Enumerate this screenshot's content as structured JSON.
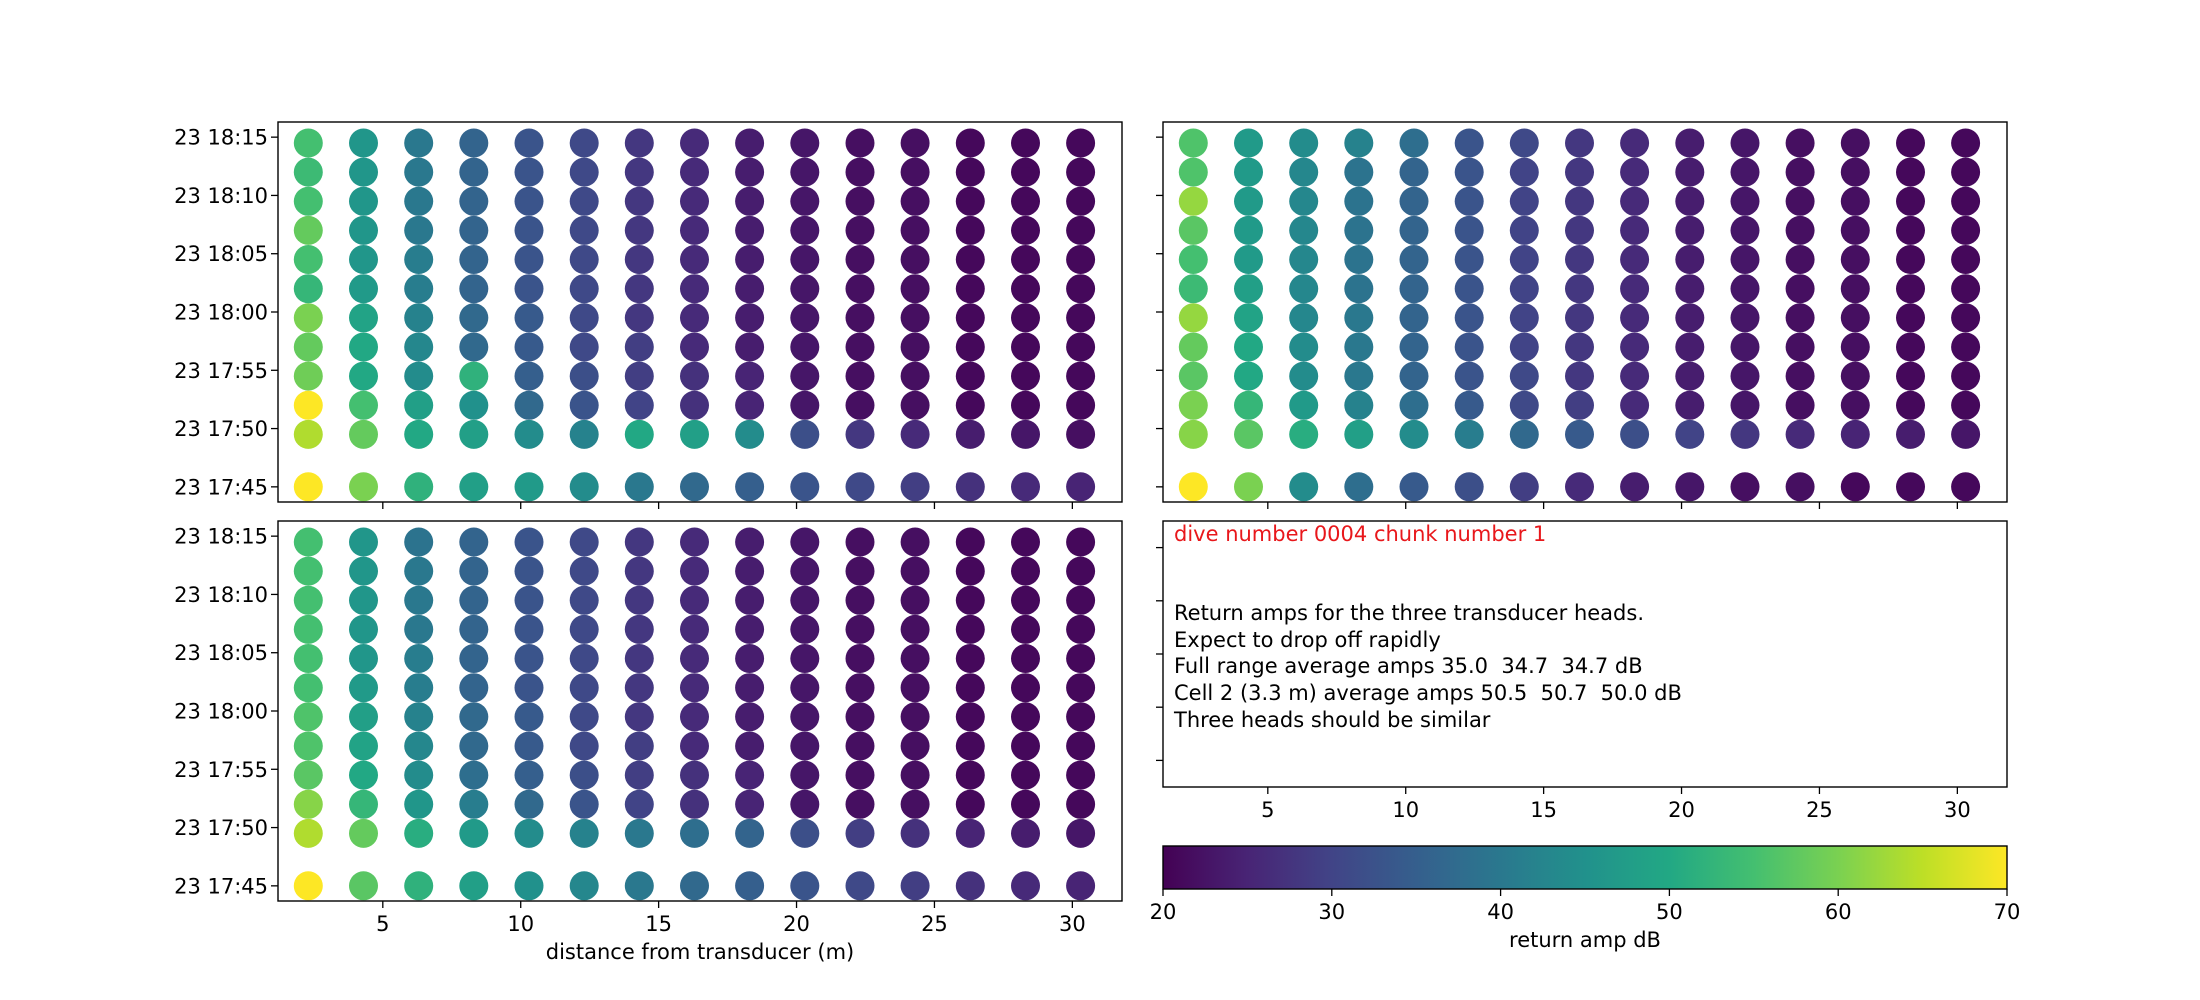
{
  "info_panel": {
    "title": "dive number 0004 chunk number 1",
    "lines": [
      "Return amps for the three transducer heads.",
      "Expect to drop off rapidly",
      "Full range average amps 35.0  34.7  34.7 dB",
      "Cell 2 (3.3 m) average amps 50.5  50.7  50.0 dB",
      "Three heads should be similar"
    ]
  },
  "colorbar": {
    "label": "return amp dB",
    "range": [
      20,
      70
    ],
    "ticks": [
      "20",
      "30",
      "40",
      "50",
      "60",
      "70"
    ],
    "colormap": "viridis"
  },
  "chart_data": [
    {
      "type": "scatter",
      "panel": "top-left",
      "xlabel": "",
      "x_ticks": [
        "5",
        "10",
        "15",
        "20",
        "25",
        "30"
      ],
      "show_x_tick_labels": false,
      "y_ticks": [
        "23 18:15",
        "23 18:10",
        "23 18:05",
        "23 18:00",
        "23 17:55",
        "23 17:50",
        "23 17:45"
      ],
      "y_tick_minutes": [
        30,
        25,
        20,
        15,
        10,
        5,
        0
      ],
      "x_range": [
        1.2,
        31.8
      ],
      "y_range_minutes": [
        -1.3,
        31.3
      ],
      "distances": [
        2.3,
        4.3,
        6.3,
        8.3,
        10.3,
        12.3,
        14.3,
        16.3,
        18.3,
        20.3,
        22.3,
        24.3,
        26.3,
        28.3,
        30.3
      ],
      "times_minutes": [
        29.5,
        27,
        24.5,
        22,
        19.5,
        17,
        14.5,
        12,
        9.5,
        7,
        4.5,
        0
      ],
      "values_db": [
        [
          55,
          46,
          40,
          36,
          33,
          31,
          28,
          26,
          24,
          23,
          22,
          22,
          21,
          21,
          21
        ],
        [
          54,
          46,
          40,
          36,
          33,
          31,
          28,
          26,
          24,
          23,
          22,
          22,
          21,
          21,
          21
        ],
        [
          55,
          46,
          40,
          36,
          33,
          31,
          28,
          26,
          24,
          23,
          22,
          22,
          21,
          21,
          21
        ],
        [
          58,
          46,
          40,
          36,
          33,
          31,
          28,
          26,
          24,
          23,
          22,
          22,
          21,
          21,
          21
        ],
        [
          55,
          46,
          41,
          36,
          33,
          31,
          28,
          26,
          24,
          23,
          22,
          22,
          21,
          21,
          21
        ],
        [
          53,
          47,
          41,
          36,
          33,
          31,
          28,
          26,
          24,
          23,
          22,
          22,
          21,
          21,
          21
        ],
        [
          60,
          49,
          42,
          37,
          34,
          31,
          28,
          26,
          24,
          23,
          22,
          22,
          21,
          21,
          21
        ],
        [
          58,
          50,
          43,
          37,
          34,
          31,
          29,
          26,
          24,
          23,
          22,
          22,
          21,
          21,
          21
        ],
        [
          59,
          50,
          44,
          52,
          35,
          32,
          29,
          27,
          25,
          23,
          22,
          22,
          21,
          21,
          21
        ],
        [
          70,
          55,
          48,
          45,
          37,
          33,
          30,
          27,
          25,
          23,
          22,
          22,
          21,
          21,
          21
        ],
        [
          64,
          58,
          50,
          48,
          44,
          42,
          50,
          48,
          44,
          32,
          28,
          26,
          24,
          23,
          22
        ],
        [
          70,
          60,
          52,
          48,
          47,
          44,
          40,
          37,
          35,
          33,
          31,
          29,
          27,
          26,
          25
        ]
      ]
    },
    {
      "type": "scatter",
      "panel": "top-right",
      "xlabel": "",
      "x_ticks": [
        "5",
        "10",
        "15",
        "20",
        "25",
        "30"
      ],
      "show_x_tick_labels": false,
      "y_ticks": [],
      "y_tick_minutes": [
        30,
        25,
        20,
        15,
        10,
        5,
        0
      ],
      "x_range": [
        1.2,
        31.8
      ],
      "y_range_minutes": [
        -1.3,
        31.3
      ],
      "distances": [
        2.3,
        4.3,
        6.3,
        8.3,
        10.3,
        12.3,
        14.3,
        16.3,
        18.3,
        20.3,
        22.3,
        24.3,
        26.3,
        28.3,
        30.3
      ],
      "times_minutes": [
        29.5,
        27,
        24.5,
        22,
        19.5,
        17,
        14.5,
        12,
        9.5,
        7,
        4.5,
        0
      ],
      "values_db": [
        [
          56,
          47,
          44,
          42,
          38,
          33,
          31,
          28,
          26,
          24,
          23,
          22,
          22,
          21,
          21
        ],
        [
          56,
          47,
          43,
          39,
          36,
          33,
          30,
          28,
          26,
          24,
          23,
          22,
          22,
          21,
          21
        ],
        [
          62,
          47,
          43,
          39,
          36,
          33,
          30,
          28,
          26,
          24,
          23,
          22,
          22,
          21,
          21
        ],
        [
          57,
          47,
          43,
          39,
          36,
          33,
          30,
          28,
          26,
          24,
          23,
          22,
          22,
          21,
          21
        ],
        [
          55,
          47,
          43,
          39,
          36,
          33,
          30,
          28,
          26,
          24,
          23,
          22,
          22,
          21,
          21
        ],
        [
          54,
          48,
          43,
          39,
          36,
          33,
          30,
          28,
          26,
          24,
          23,
          22,
          22,
          21,
          21
        ],
        [
          62,
          49,
          43,
          40,
          36,
          33,
          30,
          28,
          26,
          24,
          23,
          22,
          22,
          21,
          21
        ],
        [
          58,
          50,
          44,
          40,
          36,
          33,
          30,
          28,
          26,
          24,
          23,
          22,
          22,
          21,
          21
        ],
        [
          57,
          50,
          44,
          40,
          36,
          33,
          31,
          28,
          26,
          24,
          23,
          22,
          22,
          21,
          21
        ],
        [
          60,
          53,
          47,
          42,
          38,
          34,
          31,
          29,
          26,
          24,
          23,
          22,
          22,
          21,
          21
        ],
        [
          61,
          57,
          51,
          48,
          44,
          41,
          37,
          34,
          32,
          30,
          28,
          26,
          25,
          24,
          23
        ],
        [
          70,
          60,
          44,
          38,
          34,
          32,
          29,
          26,
          24,
          23,
          22,
          22,
          21,
          21,
          21
        ]
      ]
    },
    {
      "type": "scatter",
      "panel": "bottom-left",
      "xlabel": "distance from transducer (m)",
      "x_ticks": [
        "5",
        "10",
        "15",
        "20",
        "25",
        "30"
      ],
      "show_x_tick_labels": true,
      "y_ticks": [
        "23 18:15",
        "23 18:10",
        "23 18:05",
        "23 18:00",
        "23 17:55",
        "23 17:50",
        "23 17:45"
      ],
      "y_tick_minutes": [
        30,
        25,
        20,
        15,
        10,
        5,
        0
      ],
      "x_range": [
        1.2,
        31.8
      ],
      "y_range_minutes": [
        -1.3,
        31.3
      ],
      "distances": [
        2.3,
        4.3,
        6.3,
        8.3,
        10.3,
        12.3,
        14.3,
        16.3,
        18.3,
        20.3,
        22.3,
        24.3,
        26.3,
        28.3,
        30.3
      ],
      "times_minutes": [
        29.5,
        27,
        24.5,
        22,
        19.5,
        17,
        14.5,
        12,
        9.5,
        7,
        4.5,
        0
      ],
      "values_db": [
        [
          55,
          46,
          39,
          36,
          33,
          31,
          28,
          26,
          24,
          23,
          22,
          22,
          21,
          21,
          21
        ],
        [
          55,
          46,
          40,
          36,
          33,
          31,
          28,
          26,
          24,
          23,
          22,
          22,
          21,
          21,
          21
        ],
        [
          55,
          46,
          40,
          36,
          33,
          31,
          28,
          26,
          24,
          23,
          22,
          22,
          21,
          21,
          21
        ],
        [
          55,
          46,
          40,
          36,
          33,
          31,
          28,
          26,
          24,
          23,
          22,
          22,
          21,
          21,
          21
        ],
        [
          55,
          46,
          41,
          36,
          33,
          31,
          28,
          26,
          24,
          23,
          22,
          22,
          21,
          21,
          21
        ],
        [
          55,
          47,
          41,
          36,
          33,
          31,
          28,
          26,
          24,
          23,
          22,
          22,
          21,
          21,
          21
        ],
        [
          56,
          48,
          42,
          37,
          34,
          31,
          28,
          26,
          24,
          23,
          22,
          22,
          21,
          21,
          21
        ],
        [
          56,
          49,
          43,
          37,
          34,
          31,
          29,
          26,
          24,
          23,
          22,
          22,
          21,
          21,
          21
        ],
        [
          57,
          50,
          44,
          38,
          35,
          32,
          29,
          27,
          25,
          23,
          22,
          22,
          21,
          21,
          21
        ],
        [
          61,
          53,
          46,
          41,
          37,
          33,
          30,
          27,
          25,
          23,
          22,
          22,
          21,
          21,
          21
        ],
        [
          64,
          58,
          51,
          47,
          44,
          42,
          40,
          38,
          36,
          32,
          29,
          27,
          25,
          24,
          23
        ],
        [
          70,
          57,
          52,
          48,
          45,
          43,
          40,
          37,
          35,
          33,
          31,
          29,
          27,
          26,
          25
        ]
      ]
    }
  ]
}
